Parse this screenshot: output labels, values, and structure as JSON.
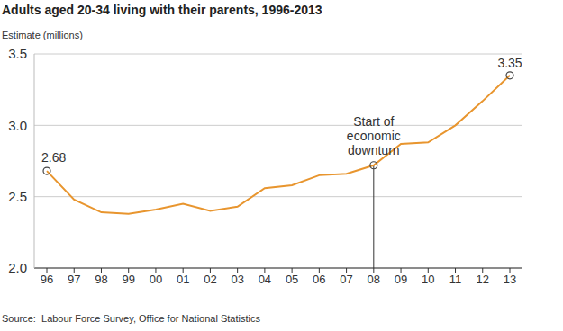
{
  "chart_data": {
    "type": "line",
    "title": "Adults aged 20-34 living with their parents, 1996-2013",
    "y_label": "Estimate (millions)",
    "source": "Source:  Labour Force Survey, Office for National Statistics",
    "categories": [
      "96",
      "97",
      "98",
      "99",
      "00",
      "01",
      "02",
      "03",
      "04",
      "05",
      "06",
      "07",
      "08",
      "09",
      "10",
      "11",
      "12",
      "13"
    ],
    "values": [
      2.68,
      2.48,
      2.39,
      2.38,
      2.41,
      2.45,
      2.4,
      2.43,
      2.56,
      2.58,
      2.65,
      2.66,
      2.72,
      2.87,
      2.88,
      3.0,
      3.17,
      3.35
    ],
    "color": "#e8952e",
    "ylim": [
      2.0,
      3.5
    ],
    "yticks": [
      {
        "value": 2.0,
        "label": "2.0"
      },
      2.5,
      {
        "value": 3.0,
        "label": "3.0"
      },
      3.5
    ],
    "grid": true,
    "annotations": [
      {
        "x": "96",
        "text": "2.68",
        "marker": "circle"
      },
      {
        "x": "08",
        "text": "Start of economic downturn",
        "marker": "circle_line"
      },
      {
        "x": "13",
        "text": "3.35",
        "marker": "circle"
      }
    ]
  }
}
